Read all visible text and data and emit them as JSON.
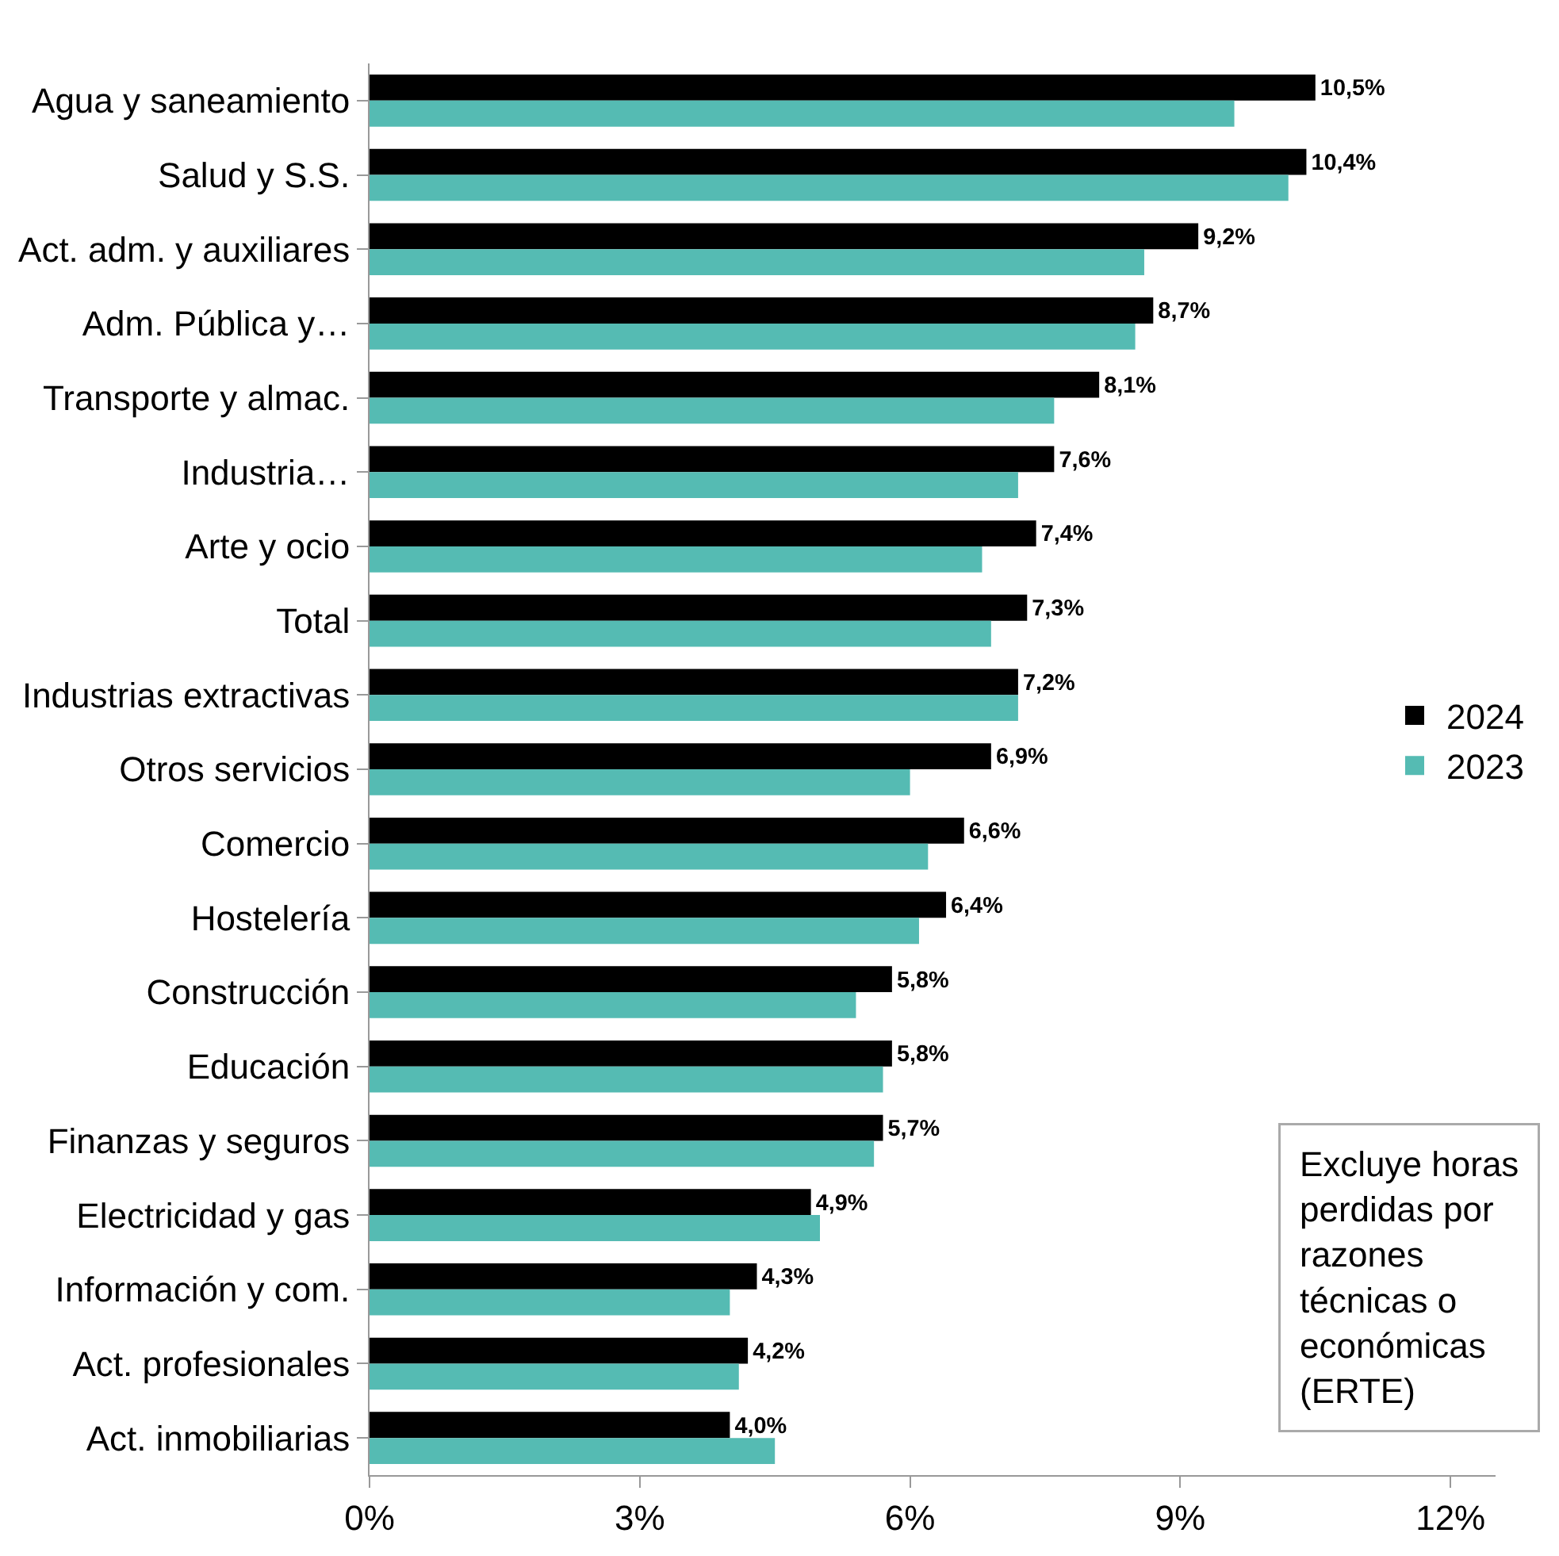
{
  "chart_data": {
    "type": "bar",
    "orientation": "horizontal",
    "categories": [
      "Agua y saneamiento",
      "Salud y S.S.",
      "Act. adm. y auxiliares",
      "Adm. Pública y…",
      "Transporte y almac.",
      "Industria…",
      "Arte y ocio",
      "Total",
      "Industrias extractivas",
      "Otros servicios",
      "Comercio",
      "Hostelería",
      "Construcción",
      "Educación",
      "Finanzas y seguros",
      "Electricidad y gas",
      "Información y com.",
      "Act. profesionales",
      "Act. inmobiliarias"
    ],
    "series": [
      {
        "name": "2024",
        "color": "#000000",
        "values": [
          10.5,
          10.4,
          9.2,
          8.7,
          8.1,
          7.6,
          7.4,
          7.3,
          7.2,
          6.9,
          6.6,
          6.4,
          5.8,
          5.8,
          5.7,
          4.9,
          4.3,
          4.2,
          4.0
        ],
        "value_labels": [
          "10,5%",
          "10,4%",
          "9,2%",
          "8,7%",
          "8,1%",
          "7,6%",
          "7,4%",
          "7,3%",
          "7,2%",
          "6,9%",
          "6,6%",
          "6,4%",
          "5,8%",
          "5,8%",
          "5,7%",
          "4,9%",
          "4,3%",
          "4,2%",
          "4,0%"
        ]
      },
      {
        "name": "2023",
        "color": "#55bbb3",
        "values": [
          9.6,
          10.2,
          8.6,
          8.5,
          7.6,
          7.2,
          6.8,
          6.9,
          7.2,
          6.0,
          6.2,
          6.1,
          5.4,
          5.7,
          5.6,
          5.0,
          4.0,
          4.1,
          4.5
        ]
      }
    ],
    "xlim": [
      0,
      12.5
    ],
    "xticks": [
      {
        "value": 0,
        "label": "0%"
      },
      {
        "value": 3,
        "label": "3%"
      },
      {
        "value": 6,
        "label": "6%"
      },
      {
        "value": 9,
        "label": "9%"
      },
      {
        "value": 12,
        "label": "12%"
      }
    ],
    "grid": false,
    "legend": "right",
    "annotations": [
      "Excluye horas\nperdidas por\nrazones\ntécnicas o\neconómicas\n(ERTE)"
    ]
  }
}
